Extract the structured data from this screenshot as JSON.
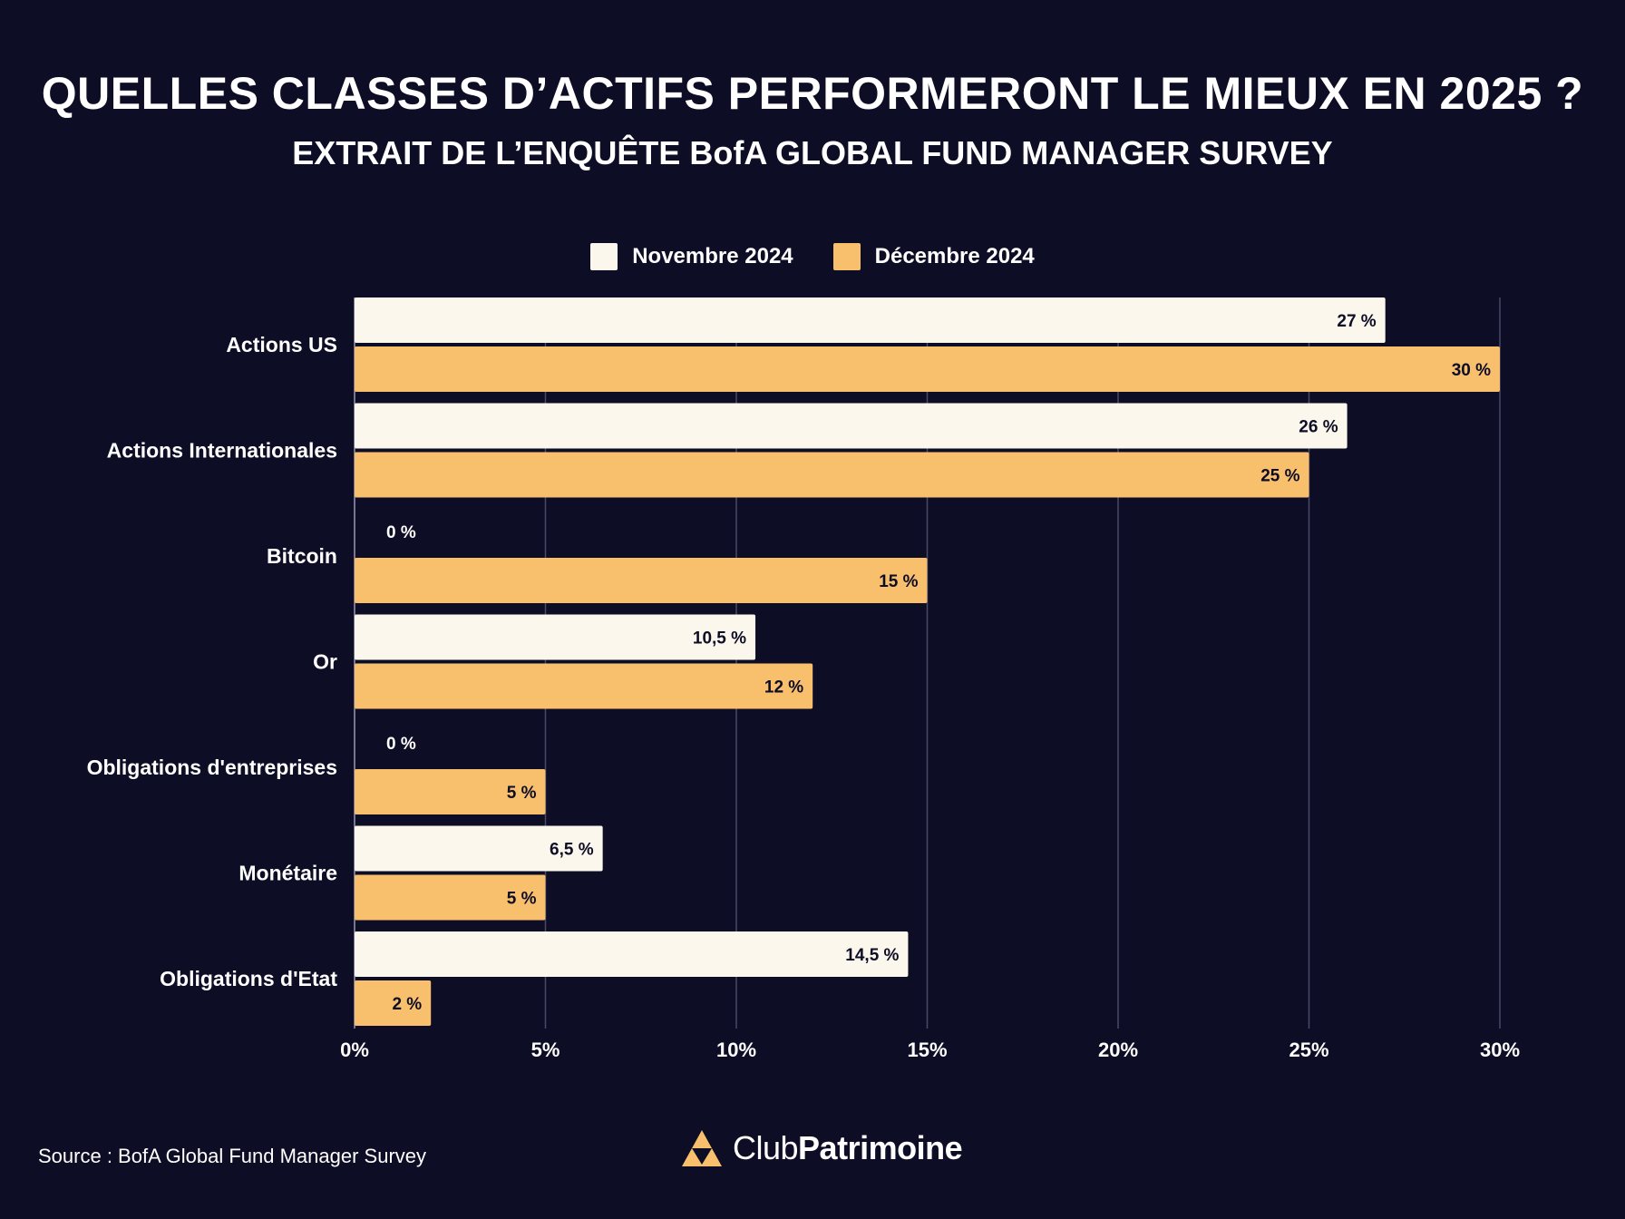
{
  "header": {
    "title": "QUELLES CLASSES D’ACTIFS PERFORMERONT LE MIEUX EN 2025 ?",
    "subtitle": "EXTRAIT DE L’ENQUÊTE BofA GLOBAL FUND MANAGER SURVEY"
  },
  "colors": {
    "background": "#0e0d26",
    "series_nov": "#fcf7ec",
    "series_dec": "#f8c06c",
    "grid": "#4a4a66"
  },
  "chart_data": {
    "type": "bar",
    "orientation": "horizontal",
    "categories": [
      "Actions US",
      "Actions Internationales",
      "Bitcoin",
      "Or",
      "Obligations d'entreprises",
      "Monétaire",
      "Obligations d'Etat"
    ],
    "series": [
      {
        "name": "Novembre 2024",
        "values": [
          27,
          26,
          0,
          10.5,
          0,
          6.5,
          14.5
        ],
        "labels": [
          "27 %",
          "26 %",
          "0 %",
          "10,5 %",
          "0 %",
          "6,5 %",
          "14,5 %"
        ]
      },
      {
        "name": "Décembre 2024",
        "values": [
          30,
          25,
          15,
          12,
          5,
          5,
          2
        ],
        "labels": [
          "30 %",
          "25 %",
          "15 %",
          "12 %",
          "5 %",
          "5 %",
          "2 %"
        ]
      }
    ],
    "xlim": [
      0,
      30
    ],
    "xticks": [
      0,
      5,
      10,
      15,
      20,
      25,
      30
    ],
    "xtick_labels": [
      "0%",
      "5%",
      "10%",
      "15%",
      "20%",
      "25%",
      "30%"
    ],
    "grid": true,
    "legend_position": "top"
  },
  "footer": {
    "source": "Source : BofA Global Fund Manager Survey",
    "logo_light": "Club",
    "logo_bold": "Patrimoine"
  }
}
